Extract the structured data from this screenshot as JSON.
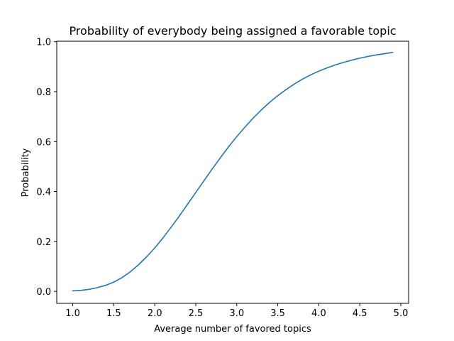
{
  "chart_data": {
    "type": "line",
    "title": "Probability of everybody being assigned a favorable topic",
    "xlabel": "Average number of favored topics",
    "ylabel": "Probability",
    "xlim": [
      0.805,
      5.095
    ],
    "ylim": [
      -0.048,
      1.002
    ],
    "x_ticks": [
      1.0,
      1.5,
      2.0,
      2.5,
      3.0,
      3.5,
      4.0,
      4.5,
      5.0
    ],
    "x_tick_labels": [
      "1.0",
      "1.5",
      "2.0",
      "2.5",
      "3.0",
      "3.5",
      "4.0",
      "4.5",
      "5.0"
    ],
    "y_ticks": [
      0.0,
      0.2,
      0.4,
      0.6,
      0.8,
      1.0
    ],
    "y_tick_labels": [
      "0.0",
      "0.2",
      "0.4",
      "0.6",
      "0.8",
      "1.0"
    ],
    "grid": false,
    "series": [
      {
        "color": "#1f77b4",
        "x": [
          1.0,
          1.1,
          1.2,
          1.3,
          1.4,
          1.5,
          1.6,
          1.7,
          1.8,
          1.9,
          2.0,
          2.1,
          2.2,
          2.3,
          2.4,
          2.5,
          2.6,
          2.7,
          2.8,
          2.9,
          3.0,
          3.1,
          3.2,
          3.3,
          3.4,
          3.5,
          3.6,
          3.7,
          3.8,
          3.9,
          4.0,
          4.1,
          4.2,
          4.3,
          4.4,
          4.5,
          4.6,
          4.7,
          4.8,
          4.9
        ],
        "y": [
          0.002,
          0.004,
          0.008,
          0.015,
          0.024,
          0.037,
          0.055,
          0.078,
          0.106,
          0.138,
          0.174,
          0.214,
          0.257,
          0.302,
          0.349,
          0.396,
          0.443,
          0.49,
          0.535,
          0.579,
          0.62,
          0.658,
          0.694,
          0.727,
          0.757,
          0.784,
          0.808,
          0.83,
          0.85,
          0.867,
          0.882,
          0.895,
          0.907,
          0.917,
          0.926,
          0.934,
          0.941,
          0.947,
          0.952,
          0.957
        ]
      }
    ]
  }
}
